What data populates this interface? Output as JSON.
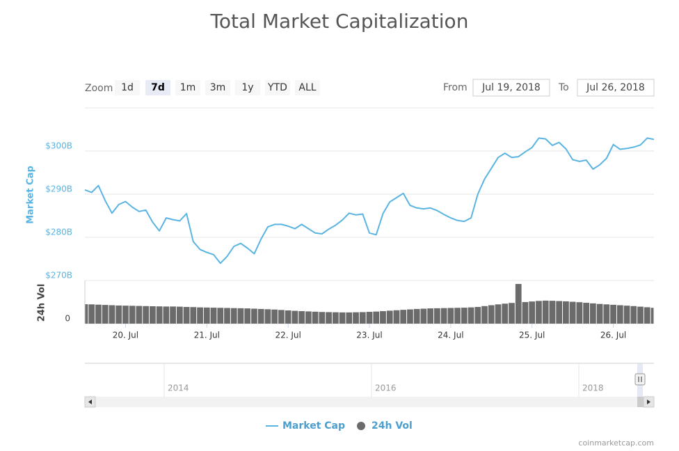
{
  "chart_data": {
    "type": "line",
    "title": "Total Market Capitalization",
    "zoom_label": "Zoom",
    "zoom_buttons": [
      "1d",
      "7d",
      "1m",
      "3m",
      "1y",
      "YTD",
      "ALL"
    ],
    "selected_zoom": "7d",
    "from_label": "From",
    "from": "Jul 19, 2018",
    "to_label": "To",
    "to": "Jul 26, 2018",
    "x": [
      "2018-07-19T12:00",
      "2018-07-19T14:00",
      "2018-07-19T16:00",
      "2018-07-19T18:00",
      "2018-07-19T20:00",
      "2018-07-19T22:00",
      "2018-07-20T00:00",
      "2018-07-20T02:00",
      "2018-07-20T04:00",
      "2018-07-20T06:00",
      "2018-07-20T08:00",
      "2018-07-20T10:00",
      "2018-07-20T12:00",
      "2018-07-20T14:00",
      "2018-07-20T16:00",
      "2018-07-20T18:00",
      "2018-07-20T20:00",
      "2018-07-20T22:00",
      "2018-07-21T00:00",
      "2018-07-21T02:00",
      "2018-07-21T04:00",
      "2018-07-21T06:00",
      "2018-07-21T08:00",
      "2018-07-21T10:00",
      "2018-07-21T12:00",
      "2018-07-21T14:00",
      "2018-07-21T16:00",
      "2018-07-21T18:00",
      "2018-07-21T20:00",
      "2018-07-21T22:00",
      "2018-07-22T00:00",
      "2018-07-22T02:00",
      "2018-07-22T04:00",
      "2018-07-22T06:00",
      "2018-07-22T08:00",
      "2018-07-22T10:00",
      "2018-07-22T12:00",
      "2018-07-22T14:00",
      "2018-07-22T16:00",
      "2018-07-22T18:00",
      "2018-07-22T20:00",
      "2018-07-22T22:00",
      "2018-07-23T00:00",
      "2018-07-23T02:00",
      "2018-07-23T04:00",
      "2018-07-23T06:00",
      "2018-07-23T08:00",
      "2018-07-23T10:00",
      "2018-07-23T12:00",
      "2018-07-23T14:00",
      "2018-07-23T16:00",
      "2018-07-23T18:00",
      "2018-07-23T20:00",
      "2018-07-23T22:00",
      "2018-07-24T00:00",
      "2018-07-24T02:00",
      "2018-07-24T04:00",
      "2018-07-24T06:00",
      "2018-07-24T08:00",
      "2018-07-24T10:00",
      "2018-07-24T12:00",
      "2018-07-24T14:00",
      "2018-07-24T16:00",
      "2018-07-24T18:00",
      "2018-07-24T20:00",
      "2018-07-24T22:00",
      "2018-07-25T00:00",
      "2018-07-25T02:00",
      "2018-07-25T04:00",
      "2018-07-25T06:00",
      "2018-07-25T08:00",
      "2018-07-25T10:00",
      "2018-07-25T12:00",
      "2018-07-25T14:00",
      "2018-07-25T16:00",
      "2018-07-25T18:00",
      "2018-07-25T20:00",
      "2018-07-25T22:00",
      "2018-07-26T00:00",
      "2018-07-26T02:00",
      "2018-07-26T04:00",
      "2018-07-26T06:00",
      "2018-07-26T08:00",
      "2018-07-26T10:00",
      "2018-07-26T12:00"
    ],
    "xlim": [
      "2018-07-19T12:00",
      "2018-07-26T12:00"
    ],
    "xticks": [
      {
        "value": "2018-07-20T00:00",
        "label": "20. Jul"
      },
      {
        "value": "2018-07-21T00:00",
        "label": "21. Jul"
      },
      {
        "value": "2018-07-22T00:00",
        "label": "22. Jul"
      },
      {
        "value": "2018-07-23T00:00",
        "label": "23. Jul"
      },
      {
        "value": "2018-07-24T00:00",
        "label": "24. Jul"
      },
      {
        "value": "2018-07-25T00:00",
        "label": "25. Jul"
      },
      {
        "value": "2018-07-26T00:00",
        "label": "26. Jul"
      }
    ],
    "series": [
      {
        "name": "Market Cap",
        "color": "#5ab4e2",
        "axis": "y",
        "values": [
          291.0,
          290.4,
          292.0,
          288.5,
          285.6,
          287.6,
          288.3,
          287.0,
          286.0,
          286.3,
          283.5,
          281.5,
          284.5,
          284.1,
          283.8,
          285.5,
          279.0,
          277.2,
          276.5,
          276.0,
          274.0,
          275.6,
          277.9,
          278.6,
          277.5,
          276.2,
          279.6,
          282.4,
          283.0,
          283.0,
          282.6,
          282.0,
          283.0,
          282.0,
          281.0,
          280.8,
          281.9,
          282.8,
          284.0,
          285.6,
          285.2,
          285.4,
          281.0,
          280.6,
          285.5,
          288.2,
          289.2,
          290.2,
          287.4,
          286.8,
          286.6,
          286.8,
          286.2,
          285.3,
          284.5,
          283.9,
          283.7,
          284.5,
          290.0,
          293.5,
          296.0,
          298.5,
          299.5,
          298.5,
          298.7,
          299.8,
          300.8,
          303.0,
          302.8,
          301.3,
          302.0,
          300.5,
          298.0,
          297.6,
          297.9,
          295.8,
          296.8,
          298.3,
          301.5,
          300.4,
          300.6,
          300.9,
          301.4,
          303.0,
          302.7
        ]
      },
      {
        "name": "24h Vol",
        "color": "#6b6b6b",
        "axis": "y2",
        "type": "column",
        "values": [
          13.5,
          13.4,
          13.2,
          13.0,
          12.8,
          12.6,
          12.5,
          12.4,
          12.3,
          12.2,
          12.1,
          12.0,
          11.9,
          11.9,
          11.8,
          11.6,
          11.5,
          11.3,
          11.2,
          11.1,
          11.0,
          10.9,
          10.8,
          10.7,
          10.6,
          10.4,
          10.2,
          10.0,
          9.8,
          9.5,
          9.2,
          8.9,
          8.7,
          8.5,
          8.3,
          8.1,
          8.0,
          7.9,
          7.8,
          7.8,
          7.9,
          8.0,
          8.2,
          8.4,
          8.7,
          9.0,
          9.3,
          9.6,
          9.9,
          10.2,
          10.4,
          10.6,
          10.7,
          10.8,
          10.9,
          11.0,
          11.1,
          11.3,
          11.6,
          12.2,
          12.8,
          13.4,
          13.9,
          14.4,
          27.6,
          15.0,
          15.4,
          15.8,
          16.0,
          15.9,
          15.7,
          15.5,
          15.2,
          14.9,
          14.5,
          14.1,
          13.7,
          13.4,
          13.1,
          12.8,
          12.5,
          12.2,
          11.8,
          11.4,
          11.0
        ]
      }
    ],
    "y_label": "Market Cap",
    "ylim": [
      270,
      310
    ],
    "yticks": [
      {
        "value": 270,
        "label": "$270B"
      },
      {
        "value": 280,
        "label": "$280B"
      },
      {
        "value": 290,
        "label": "$290B"
      },
      {
        "value": 300,
        "label": "$300B"
      }
    ],
    "y2_label": "24h Vol",
    "y2lim": [
      0,
      30
    ],
    "y2ticks": [
      0
    ],
    "grid": true,
    "navigator": {
      "labels": [
        "2014",
        "2016",
        "2018"
      ]
    },
    "credit": "coinmarketcap.com"
  }
}
